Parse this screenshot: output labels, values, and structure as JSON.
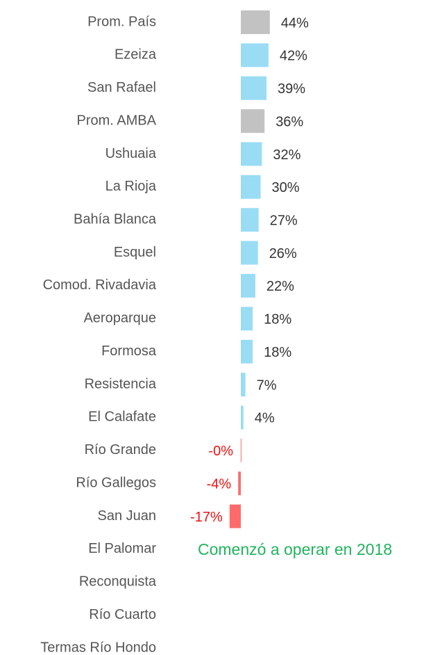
{
  "chart_data": {
    "type": "bar",
    "orientation": "horizontal",
    "categories": [
      "Prom. País",
      "Ezeiza",
      "San Rafael",
      "Prom. AMBA",
      "Ushuaia",
      "La Rioja",
      "Bahía Blanca",
      "Esquel",
      "Comod. Rivadavia",
      "Aeroparque",
      "Formosa",
      "Resistencia",
      "El Calafate",
      "Río Grande",
      "Río Gallegos",
      "San Juan",
      "El Palomar",
      "Reconquista",
      "Río Cuarto",
      "Termas Río Hondo"
    ],
    "values": [
      44,
      42,
      39,
      36,
      32,
      30,
      27,
      26,
      22,
      18,
      18,
      7,
      4,
      -0.2,
      -4,
      -17,
      null,
      null,
      null,
      null
    ],
    "value_labels": [
      "44%",
      "42%",
      "39%",
      "36%",
      "32%",
      "30%",
      "27%",
      "26%",
      "22%",
      "18%",
      "18%",
      "7%",
      "4%",
      "-0%",
      "-4%",
      "-17%",
      null,
      null,
      null,
      null
    ],
    "colors": [
      "#c2c2c2",
      "#99dcf4",
      "#99dcf4",
      "#c2c2c2",
      "#99dcf4",
      "#99dcf4",
      "#99dcf4",
      "#99dcf4",
      "#99dcf4",
      "#99dcf4",
      "#99dcf4",
      "#99dcf4",
      "#99dcf4",
      "#ff6b6b",
      "#ff6b6b",
      "#ff6b6b",
      null,
      null,
      null,
      null
    ],
    "positive_label_color": "#333333",
    "negative_label_color": "#ee1111",
    "annotations": [
      {
        "category": "El Palomar",
        "text": "Comenzó a operar en 2018"
      }
    ]
  }
}
